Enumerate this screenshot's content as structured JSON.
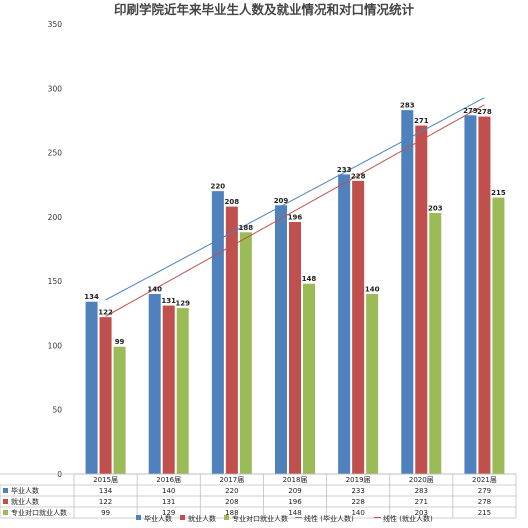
{
  "chart_data": {
    "type": "bar",
    "title": "印刷学院近年来毕业生人数及就业情况和对口情况统计",
    "categories": [
      "2015届",
      "2016届",
      "2017届",
      "2018届",
      "2019届",
      "2020届",
      "2021届"
    ],
    "ylim": [
      0,
      350
    ],
    "yticks": [
      0,
      50,
      100,
      150,
      200,
      250,
      300,
      350
    ],
    "series": [
      {
        "name": "毕业人数",
        "color": "#4F81BD",
        "values": [
          134,
          140,
          220,
          209,
          233,
          283,
          279
        ]
      },
      {
        "name": "就业人数",
        "color": "#C0504D",
        "values": [
          122,
          131,
          208,
          196,
          228,
          271,
          278
        ]
      },
      {
        "name": "专业对口就业人数",
        "color": "#9BBB59",
        "values": [
          99,
          129,
          188,
          148,
          140,
          203,
          215
        ]
      }
    ],
    "trendlines": [
      {
        "name": "线性 (毕业人数)",
        "color": "#4F81BD",
        "of_series": 0
      },
      {
        "name": "线性 (就业人数)",
        "color": "#C0504D",
        "of_series": 1
      }
    ],
    "data_table": true,
    "grid": false,
    "legend": "bottom"
  }
}
